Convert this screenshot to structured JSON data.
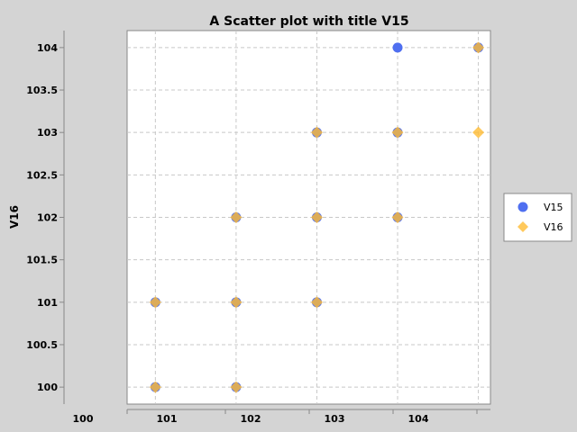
{
  "chart_data": {
    "type": "scatter",
    "title": "A Scatter plot with title V15",
    "xlabel": "",
    "ylabel": "V16",
    "xlim": [
      100.65,
      105.15
    ],
    "ylim": [
      99.8,
      104.2
    ],
    "x_ticks": [
      100,
      101,
      102,
      103,
      104
    ],
    "y_ticks": [
      100,
      100.5,
      101,
      101.5,
      102,
      102.5,
      103,
      103.5,
      104
    ],
    "x_tick_labels": [
      "100",
      "101",
      "102",
      "103",
      "104"
    ],
    "y_tick_labels": [
      "100",
      "100.5",
      "101",
      "101.5",
      "102",
      "102.5",
      "103",
      "103.5",
      "104"
    ],
    "grid": true,
    "legend_position": "right",
    "series": [
      {
        "name": "V15",
        "color": "#4f6ff0",
        "marker": "circle",
        "points": [
          {
            "x": 101,
            "y": 100
          },
          {
            "x": 101,
            "y": 101
          },
          {
            "x": 102,
            "y": 100
          },
          {
            "x": 102,
            "y": 101
          },
          {
            "x": 102,
            "y": 102
          },
          {
            "x": 103,
            "y": 101
          },
          {
            "x": 103,
            "y": 102
          },
          {
            "x": 103,
            "y": 103
          },
          {
            "x": 104,
            "y": 102
          },
          {
            "x": 104,
            "y": 103
          },
          {
            "x": 104,
            "y": 104
          },
          {
            "x": 105,
            "y": 104
          }
        ]
      },
      {
        "name": "V16",
        "color": "#ffbb33",
        "marker": "diamond",
        "points": [
          {
            "x": 101,
            "y": 100
          },
          {
            "x": 101,
            "y": 101
          },
          {
            "x": 102,
            "y": 100
          },
          {
            "x": 102,
            "y": 101
          },
          {
            "x": 102,
            "y": 102
          },
          {
            "x": 103,
            "y": 101
          },
          {
            "x": 103,
            "y": 102
          },
          {
            "x": 103,
            "y": 103
          },
          {
            "x": 104,
            "y": 102
          },
          {
            "x": 104,
            "y": 103
          },
          {
            "x": 105,
            "y": 103
          },
          {
            "x": 105,
            "y": 104
          }
        ]
      }
    ]
  }
}
